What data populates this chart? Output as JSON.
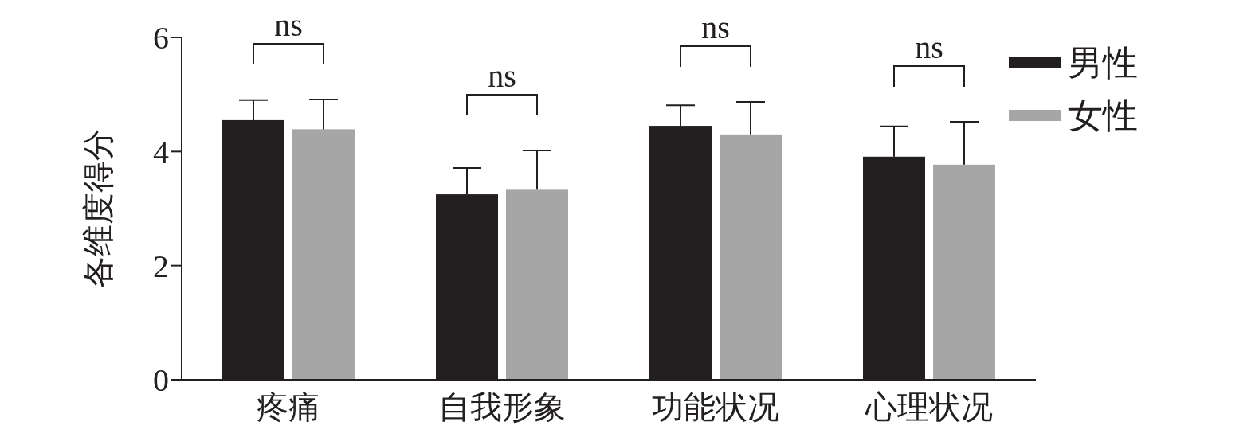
{
  "chart_data": {
    "type": "bar",
    "ylabel": "各维度得分",
    "categories": [
      "疼痛",
      "自我形象",
      "功能状况",
      "心理状况"
    ],
    "series": [
      {
        "name": "男性",
        "color": "#231f20",
        "values": [
          4.55,
          3.25,
          4.45,
          3.91
        ],
        "errors": [
          [
            4.55,
            4.9
          ],
          [
            3.25,
            3.71
          ],
          [
            4.45,
            4.81
          ],
          [
            3.91,
            4.44
          ]
        ]
      },
      {
        "name": "女性",
        "color": "#a6a6a6",
        "values": [
          4.39,
          3.33,
          4.3,
          3.77
        ],
        "errors": [
          [
            4.39,
            4.91
          ],
          [
            3.33,
            4.02
          ],
          [
            4.3,
            4.87
          ],
          [
            3.77,
            4.52
          ]
        ]
      }
    ],
    "ylim": [
      0,
      6
    ],
    "yticks": [
      0,
      2,
      4,
      6
    ],
    "grid": false,
    "legend": "top right",
    "annotations": [
      "ns",
      "ns",
      "ns",
      "ns"
    ]
  }
}
